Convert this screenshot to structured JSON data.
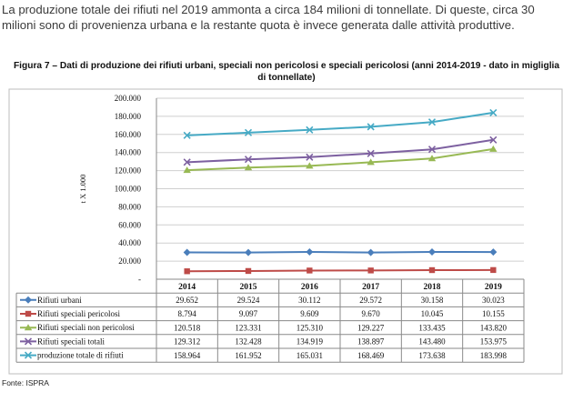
{
  "intro_text": "La produzione totale dei rifiuti nel 2019 ammonta a circa 184 milioni di tonnellate. Di queste, circa 30 milioni sono di provenienza urbana e la restante quota è invece generata dalle attività produttive.",
  "source": "Fonte: ISPRA",
  "chart_data": {
    "type": "line",
    "title": "Figura 7 – Dati di produzione dei rifiuti urbani, speciali non pericolosi e speciali pericolosi  (anni 2014-2019 - dato in migliglia di tonnellate)",
    "ylabel": "t X 1.000",
    "xlabel": "",
    "ylim": [
      0,
      200000
    ],
    "yticks": [
      "200.000",
      "180.000",
      "160.000",
      "140.000",
      "120.000",
      "100.000",
      "80.000",
      "60.000",
      "40.000",
      "20.000",
      "-"
    ],
    "grid": true,
    "legend": "data-table-below",
    "categories": [
      "2014",
      "2015",
      "2016",
      "2017",
      "2018",
      "2019"
    ],
    "series": [
      {
        "name": "Rifiuti urbani",
        "color": "#4a7ebb",
        "marker": "diamond",
        "values": [
          29652,
          29524,
          30112,
          29572,
          30158,
          30023
        ],
        "labels": [
          "29.652",
          "29.524",
          "30.112",
          "29.572",
          "30.158",
          "30.023"
        ]
      },
      {
        "name": "Rifiuti speciali pericolosi",
        "color": "#be4b48",
        "marker": "square",
        "values": [
          8794,
          9097,
          9609,
          9670,
          10045,
          10155
        ],
        "labels": [
          "8.794",
          "9.097",
          "9.609",
          "9.670",
          "10.045",
          "10.155"
        ]
      },
      {
        "name": "Rifiuti speciali non pericolosi",
        "color": "#98b954",
        "marker": "triangle",
        "values": [
          120518,
          123331,
          125310,
          129227,
          133435,
          143820
        ],
        "labels": [
          "120.518",
          "123.331",
          "125.310",
          "129.227",
          "133.435",
          "143.820"
        ]
      },
      {
        "name": "Rifiuti speciali totali",
        "color": "#7d60a0",
        "marker": "x",
        "values": [
          129312,
          132428,
          134919,
          138897,
          143480,
          153975
        ],
        "labels": [
          "129.312",
          "132.428",
          "134.919",
          "138.897",
          "143.480",
          "153.975"
        ]
      },
      {
        "name": "produzione totale di rifiuti",
        "color": "#46aac5",
        "marker": "x",
        "values": [
          158964,
          161952,
          165031,
          168469,
          173638,
          183998
        ],
        "labels": [
          "158.964",
          "161.952",
          "165.031",
          "168.469",
          "173.638",
          "183.998"
        ]
      }
    ]
  }
}
